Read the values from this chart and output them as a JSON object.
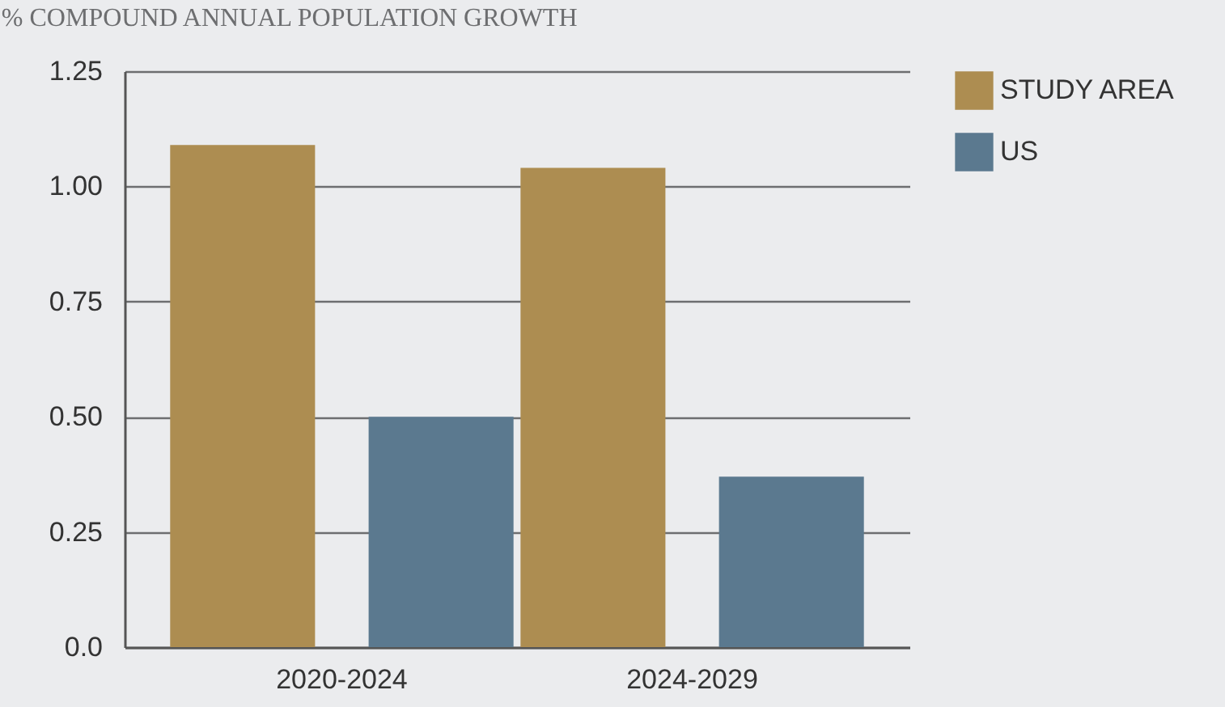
{
  "chart_data": {
    "type": "bar",
    "title": "% COMPOUND ANNUAL POPULATION GROWTH",
    "categories": [
      "2020-2024",
      "2024-2029"
    ],
    "series": [
      {
        "name": "STUDY AREA",
        "color": "#ad8d51",
        "values": [
          1.09,
          1.04
        ]
      },
      {
        "name": "US",
        "color": "#5b798f",
        "values": [
          0.5,
          0.37
        ]
      }
    ],
    "ylim": [
      0,
      1.25
    ],
    "yticks": [
      {
        "value": 0,
        "label": "0.0"
      },
      {
        "value": 0.25,
        "label": "0.25"
      },
      {
        "value": 0.5,
        "label": "0.50"
      },
      {
        "value": 0.75,
        "label": "0.75"
      },
      {
        "value": 1,
        "label": "1.00"
      },
      {
        "value": 1.25,
        "label": "1.25"
      }
    ],
    "grid": "y",
    "legend": "right"
  }
}
